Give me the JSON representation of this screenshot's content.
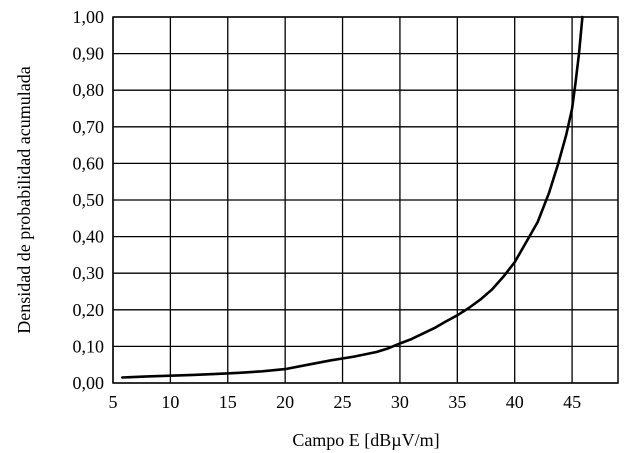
{
  "chart_data": {
    "type": "line",
    "xlabel": "Campo E [dBµV/m]",
    "ylabel": "Densidad de probabilidad acumulada",
    "xlim": [
      5,
      49
    ],
    "ylim": [
      0,
      1
    ],
    "x_ticks": [
      5,
      10,
      15,
      20,
      25,
      30,
      35,
      40,
      45
    ],
    "x_tick_labels": [
      "5",
      "10",
      "15",
      "20",
      "25",
      "30",
      "35",
      "40",
      "45"
    ],
    "y_ticks": [
      0,
      0.1,
      0.2,
      0.3,
      0.4,
      0.5,
      0.6,
      0.7,
      0.8,
      0.9,
      1.0
    ],
    "y_tick_labels": [
      "0,00",
      "0,10",
      "0,20",
      "0,30",
      "0,40",
      "0,50",
      "0,60",
      "0,70",
      "0,80",
      "0,90",
      "1,00"
    ],
    "grid": true,
    "series": [
      {
        "color": "#000000",
        "x": [
          5.8,
          8,
          10,
          12,
          14,
          16,
          18,
          20,
          22,
          24,
          26,
          28,
          29,
          30,
          31,
          32,
          33,
          34,
          35,
          36,
          37,
          38,
          39,
          40,
          41,
          42,
          43,
          43.8,
          44.5,
          45,
          45.3,
          45.6,
          45.9
        ],
        "y": [
          0.015,
          0.018,
          0.02,
          0.022,
          0.025,
          0.028,
          0.032,
          0.038,
          0.05,
          0.062,
          0.072,
          0.085,
          0.095,
          0.108,
          0.12,
          0.135,
          0.15,
          0.168,
          0.185,
          0.205,
          0.228,
          0.255,
          0.29,
          0.33,
          0.385,
          0.44,
          0.52,
          0.6,
          0.68,
          0.75,
          0.82,
          0.9,
          1.0
        ]
      }
    ]
  }
}
